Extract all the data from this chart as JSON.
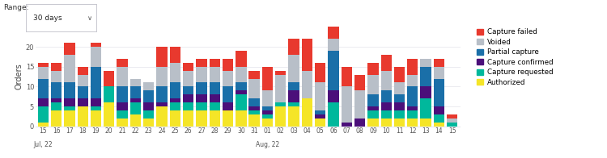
{
  "categories": [
    "15",
    "16",
    "17",
    "18",
    "19",
    "20",
    "21",
    "22",
    "23",
    "24",
    "25",
    "26",
    "27",
    "28",
    "29",
    "30",
    "31",
    "01",
    "02",
    "03",
    "04",
    "05",
    "06",
    "07",
    "08",
    "09",
    "10",
    "11",
    "12",
    "13",
    "14",
    "15"
  ],
  "authorized": [
    1,
    4,
    4,
    5,
    4,
    6,
    2,
    3,
    2,
    5,
    4,
    4,
    4,
    4,
    4,
    4,
    3,
    2,
    5,
    5,
    7,
    2,
    0,
    0,
    0,
    2,
    2,
    2,
    2,
    2,
    1,
    0
  ],
  "capture_requested": [
    4,
    2,
    1,
    0,
    1,
    4,
    2,
    3,
    2,
    0,
    2,
    2,
    2,
    2,
    0,
    4,
    1,
    1,
    1,
    1,
    0,
    0,
    6,
    0,
    0,
    2,
    2,
    2,
    2,
    5,
    2,
    1
  ],
  "capture_confirmed": [
    2,
    1,
    2,
    2,
    2,
    0,
    2,
    1,
    2,
    1,
    1,
    2,
    2,
    2,
    2,
    1,
    1,
    1,
    0,
    3,
    0,
    1,
    3,
    1,
    2,
    1,
    2,
    2,
    1,
    3,
    2,
    0
  ],
  "partial_capture": [
    5,
    4,
    4,
    3,
    8,
    0,
    4,
    3,
    3,
    4,
    4,
    2,
    3,
    3,
    4,
    2,
    2,
    1,
    0,
    2,
    0,
    1,
    10,
    0,
    0,
    3,
    3,
    2,
    5,
    5,
    7,
    0
  ],
  "voided": [
    3,
    3,
    7,
    3,
    5,
    0,
    5,
    2,
    2,
    5,
    5,
    4,
    4,
    4,
    4,
    4,
    5,
    4,
    7,
    7,
    7,
    7,
    3,
    9,
    7,
    5,
    5,
    3,
    3,
    2,
    3,
    1
  ],
  "capture_failed": [
    1,
    2,
    3,
    2,
    1,
    4,
    2,
    0,
    0,
    5,
    4,
    2,
    2,
    2,
    3,
    4,
    2,
    6,
    1,
    4,
    8,
    5,
    5,
    5,
    4,
    3,
    4,
    4,
    4,
    0,
    2,
    1
  ],
  "colors": {
    "authorized": "#f5e527",
    "capture_requested": "#00b89c",
    "capture_confirmed": "#4b0f7a",
    "partial_capture": "#1a6fa8",
    "voided": "#b8bfc8",
    "capture_failed": "#e8392e"
  },
  "legend_labels": [
    "Capture failed",
    "Voided",
    "Partial capture",
    "Capture confirmed",
    "Capture requested",
    "Authorized"
  ],
  "legend_keys": [
    "capture_failed",
    "voided",
    "partial_capture",
    "capture_confirmed",
    "capture_requested",
    "authorized"
  ],
  "ylabel": "Orders",
  "ylim": [
    0,
    25
  ],
  "yticks": [
    0,
    5,
    10,
    15,
    20
  ],
  "bg_color": "#ffffff",
  "plot_bg": "#ffffff",
  "grid_color": "#e8e8ee"
}
